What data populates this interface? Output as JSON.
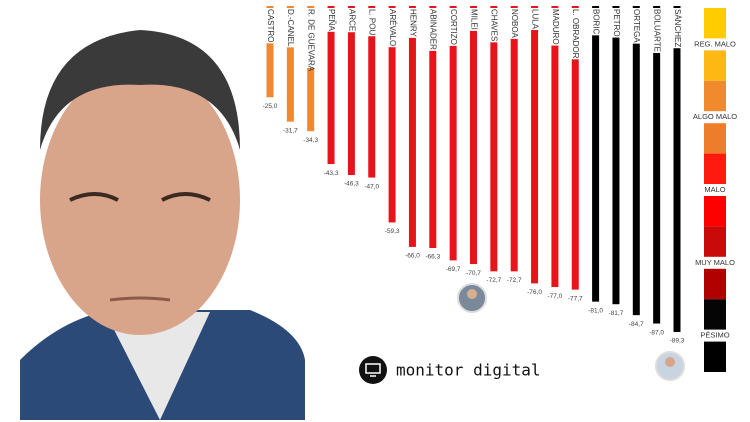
{
  "chart_data": {
    "type": "bar",
    "categories": [
      "CASTRO",
      "D.-CANEL",
      "R. DE GUEVARA",
      "PEÑA",
      "ARCE",
      "L. POU",
      "ARÉVALO",
      "HENRY",
      "ABINADER",
      "CORTIZO",
      "MILEI",
      "CHAVES",
      "NOBOA",
      "LULA",
      "MADURO",
      "L. OBRADOR",
      "BORIC",
      "PETRO",
      "ORTEGA",
      "BOLUARTE",
      "SÁNCHEZ"
    ],
    "values": [
      -25.0,
      -31.7,
      -34.3,
      -43.3,
      -46.3,
      -47.0,
      -59.3,
      -66.0,
      -66.3,
      -69.7,
      -70.7,
      -72.7,
      -72.7,
      -76.0,
      -77.0,
      -77.7,
      -81.0,
      -81.7,
      -84.7,
      -87.0,
      -89.3
    ],
    "value_labels": [
      "-25,0",
      "-31,7",
      "-34,3",
      "-43,3",
      "-46,3",
      "-47,0",
      "-59,3",
      "-66,0",
      "-66,3",
      "-69,7",
      "-70,7",
      "-72,7",
      "-72,7",
      "-76,0",
      "-77,0",
      "-77,7",
      "-81,0",
      "-81,7",
      "-84,7",
      "-87,0",
      "-89,3"
    ],
    "colors": [
      "#ee8833",
      "#ee8833",
      "#ee8833",
      "#e8141c",
      "#e8141c",
      "#e8141c",
      "#e8141c",
      "#e8141c",
      "#e8141c",
      "#e8141c",
      "#e8141c",
      "#e8141c",
      "#e8141c",
      "#e8141c",
      "#e8141c",
      "#e8141c",
      "#000000",
      "#000000",
      "#000000",
      "#000000",
      "#000000"
    ],
    "ylim": [
      -100,
      0
    ],
    "legend_bands": [
      {
        "label": "REG. MALO",
        "colors": [
          "#ffcc00",
          "#fdb813"
        ]
      },
      {
        "label": "ALGO MALO",
        "colors": [
          "#f08a2c",
          "#ee7d2b"
        ]
      },
      {
        "label": "MALO",
        "colors": [
          "#ff1a10",
          "#ff0000"
        ]
      },
      {
        "label": "MUY MALO",
        "colors": [
          "#c80a0a",
          "#b00000"
        ]
      },
      {
        "label": "PÉSIMO",
        "colors": [
          "#050505",
          "#000000"
        ]
      }
    ]
  },
  "logo": "monitor digital"
}
